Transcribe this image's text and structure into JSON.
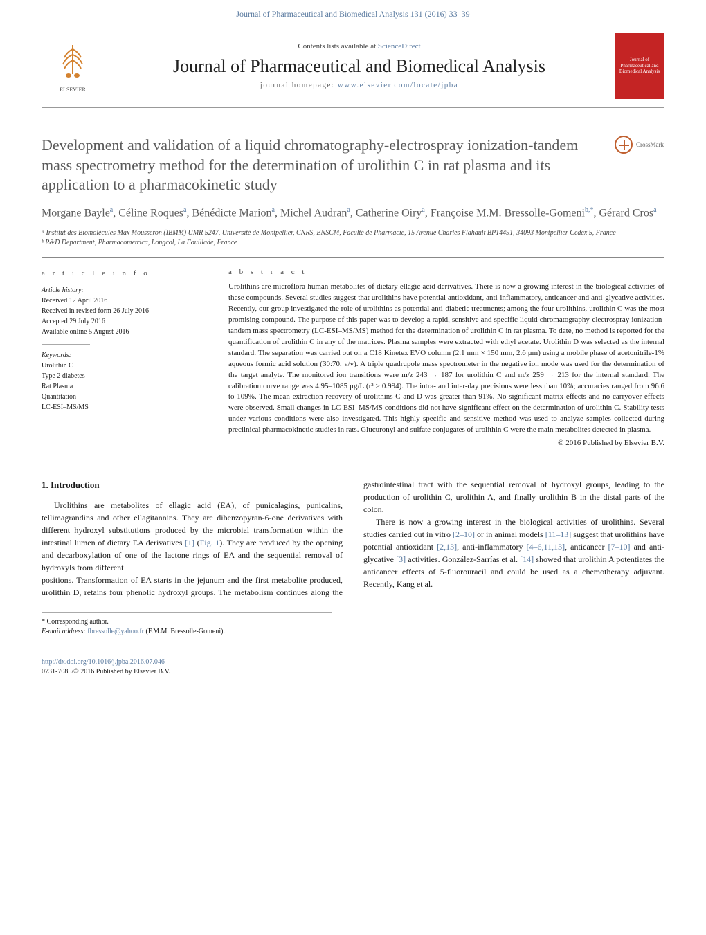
{
  "top_banner": {
    "citation": "Journal of Pharmaceutical and Biomedical Analysis 131 (2016) 33–39"
  },
  "header": {
    "contents_prefix": "Contents lists available at ",
    "contents_link": "ScienceDirect",
    "journal_title": "Journal of Pharmaceutical and Biomedical Analysis",
    "homepage_prefix": "journal homepage: ",
    "homepage_url": "www.elsevier.com/locate/jpba",
    "elsevier_label": "ELSEVIER",
    "cover_text": "Journal of Pharmaceutical and Biomedical Analysis"
  },
  "crossmark_label": "CrossMark",
  "article_title": "Development and validation of a liquid chromatography-electrospray ionization-tandem mass spectrometry method for the determination of urolithin C in rat plasma and its application to a pharmacokinetic study",
  "authors_html": "Morgane Bayle<sup>a</sup>, Céline Roques<sup>a</sup>, Bénédicte Marion<sup>a</sup>, Michel Audran<sup>a</sup>, Catherine Oiry<sup>a</sup>, Françoise M.M. Bressolle-Gomeni<sup>b,*</sup>, Gérard Cros<sup>a</sup>",
  "affiliations": [
    "ᵃ Institut des Biomolécules Max Mousseron (IBMM) UMR 5247, Université de Montpellier, CNRS, ENSCM, Faculté de Pharmacie, 15 Avenue Charles Flahault BP14491, 34093 Montpellier Cedex 5, France",
    "ᵇ R&D Department, Pharmacometrica, Longcol, La Fouillade, France"
  ],
  "article_info": {
    "label": "a r t i c l e   i n f o",
    "history_heading": "Article history:",
    "history": [
      "Received 12 April 2016",
      "Received in revised form 26 July 2016",
      "Accepted 29 July 2016",
      "Available online 5 August 2016"
    ],
    "keywords_heading": "Keywords:",
    "keywords": [
      "Urolithin C",
      "Type 2 diabetes",
      "Rat Plasma",
      "Quantitation",
      "LC-ESI–MS/MS"
    ]
  },
  "abstract": {
    "label": "a b s t r a c t",
    "text": "Urolithins are microflora human metabolites of dietary ellagic acid derivatives. There is now a growing interest in the biological activities of these compounds. Several studies suggest that urolithins have potential antioxidant, anti-inflammatory, anticancer and anti-glycative activities. Recently, our group investigated the role of urolithins as potential anti-diabetic treatments; among the four urolithins, urolithin C was the most promising compound. The purpose of this paper was to develop a rapid, sensitive and specific liquid chromatography-electrospray ionization-tandem mass spectrometry (LC-ESI–MS/MS) method for the determination of urolithin C in rat plasma. To date, no method is reported for the quantification of urolithin C in any of the matrices. Plasma samples were extracted with ethyl acetate. Urolithin D was selected as the internal standard. The separation was carried out on a C18 Kinetex EVO column (2.1 mm × 150 mm, 2.6 μm) using a mobile phase of acetonitrile-1% aqueous formic acid solution (30:70, v/v). A triple quadrupole mass spectrometer in the negative ion mode was used for the determination of the target analyte. The monitored ion transitions were m/z 243 → 187 for urolithin C and m/z 259 → 213 for the internal standard. The calibration curve range was 4.95–1085 μg/L (r² > 0.994). The intra- and inter-day precisions were less than 10%; accuracies ranged from 96.6 to 109%. The mean extraction recovery of urolithins C and D was greater than 91%. No significant matrix effects and no carryover effects were observed. Small changes in LC-ESI–MS/MS conditions did not have significant effect on the determination of urolithin C. Stability tests under various conditions were also investigated. This highly specific and sensitive method was used to analyze samples collected during preclinical pharmacokinetic studies in rats. Glucuronyl and sulfate conjugates of urolithin C were the main metabolites detected in plasma.",
    "copyright": "© 2016 Published by Elsevier B.V."
  },
  "body": {
    "intro_heading": "1.  Introduction",
    "para1": "Urolithins are metabolites of ellagic acid (EA), of punicalagins, punicalins, tellimagrandins and other ellagitannins. They are dibenzopyran-6-one derivatives with different hydroxyl substitutions produced by the microbial transformation within the intestinal lumen of dietary EA derivatives [1] (Fig. 1). They are produced by the opening and decarboxylation of one of the lactone rings of EA and the sequential removal of hydroxyls from different",
    "para2": "positions. Transformation of EA starts in the jejunum and the first metabolite produced, urolithin D, retains four phenolic hydroxyl groups. The metabolism continues along the gastrointestinal tract with the sequential removal of hydroxyl groups, leading to the production of urolithin C, urolithin A, and finally urolithin B in the distal parts of the colon.",
    "para3": "There is now a growing interest in the biological activities of urolithins. Several studies carried out in vitro [2–10] or in animal models [11–13] suggest that urolithins have potential antioxidant [2,13], anti-inflammatory [4–6,11,13], anticancer [7–10] and anti-glycative [3] activities. González-Sarrías et al. [14] showed that urolithin A potentiates the anticancer effects of 5-fluorouracil and could be used as a chemotherapy adjuvant. Recently, Kang et al."
  },
  "footer": {
    "corresponding": "* Corresponding author.",
    "email_label": "E-mail address: ",
    "email": "fbressolle@yahoo.fr",
    "email_suffix": " (F.M.M. Bressolle-Gomeni).",
    "doi_url": "http://dx.doi.org/10.1016/j.jpba.2016.07.046",
    "issn_line": "0731-7085/© 2016 Published by Elsevier B.V."
  },
  "colors": {
    "link": "#5b7ba0",
    "elsevier_orange": "#d4822f",
    "cover_red": "#c42424",
    "title_gray": "#5b5b5b",
    "text": "#1a1a1a"
  }
}
